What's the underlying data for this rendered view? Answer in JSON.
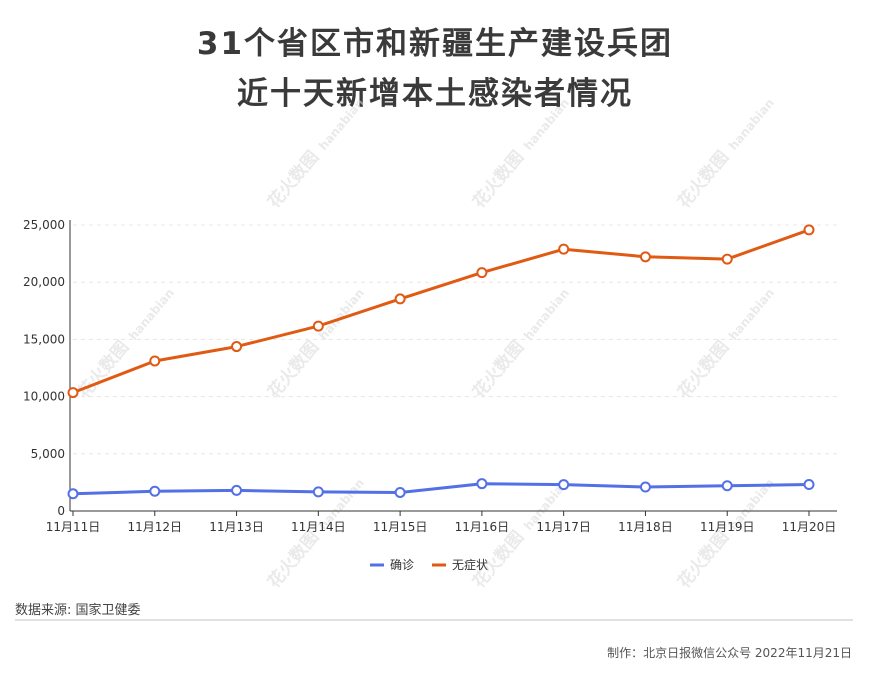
{
  "title": {
    "line1": "31个省区市和新疆生产建设兵团",
    "line2": "近十天新增本土感染者情况"
  },
  "watermark": {
    "text_cn": "花火数图",
    "text_en": "hanabian"
  },
  "chart_data": {
    "type": "line",
    "categories": [
      "11月11日",
      "11月12日",
      "11月13日",
      "11月14日",
      "11月15日",
      "11月16日",
      "11月17日",
      "11月18日",
      "11月19日",
      "11月20日"
    ],
    "series": [
      {
        "name": "确诊",
        "color": "#5470e6",
        "values": [
          1504,
          1725,
          1803,
          1673,
          1621,
          2388,
          2308,
          2099,
          2204,
          2317
        ]
      },
      {
        "name": "无症状",
        "color": "#e05a13",
        "values": [
          10351,
          13109,
          14375,
          16160,
          18539,
          20837,
          22888,
          22217,
          22017,
          24576
        ]
      }
    ],
    "yticks": [
      0,
      5000,
      10000,
      15000,
      20000,
      25000
    ],
    "yticklabels": [
      "0",
      "5,000",
      "10,000",
      "15,000",
      "20,000",
      "25,000"
    ],
    "ylim": [
      0,
      25000
    ],
    "grid": true,
    "legend_position": "bottom-center"
  },
  "footer": {
    "source": "数据来源: 国家卫健委",
    "credit": "制作：北京日报微信公众号 2022年11月21日"
  }
}
